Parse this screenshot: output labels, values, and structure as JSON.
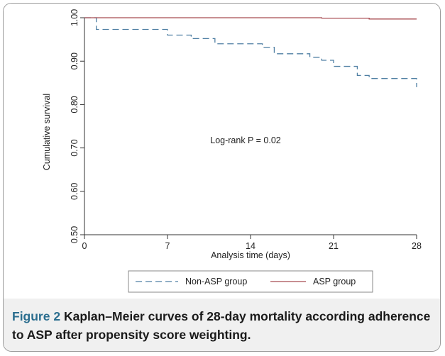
{
  "chart_data": {
    "type": "line",
    "xlabel": "Analysis time (days)",
    "ylabel": "Cumulative survival",
    "xlim": [
      0,
      28
    ],
    "ylim": [
      0.5,
      1.0
    ],
    "x_ticks": [
      0,
      7,
      14,
      21,
      28
    ],
    "x_tick_labels": [
      "0",
      "7",
      "14",
      "21",
      "28"
    ],
    "y_ticks": [
      0.5,
      0.6,
      0.7,
      0.8,
      0.9,
      1.0
    ],
    "y_tick_labels": [
      "0.50",
      "0.60",
      "0.70",
      "0.80",
      "0.90",
      "1.00"
    ],
    "grid": false,
    "legend_position": "bottom",
    "annotation": "Log-rank P = 0.02",
    "series": [
      {
        "name": "Non-ASP group",
        "color": "#4f7fa3",
        "style": "dashed",
        "step": true,
        "x": [
          0,
          1,
          7,
          9,
          11,
          15,
          16,
          19,
          20,
          21,
          23,
          24,
          28
        ],
        "y": [
          1.0,
          0.973,
          0.96,
          0.952,
          0.94,
          0.932,
          0.917,
          0.909,
          0.902,
          0.888,
          0.867,
          0.86,
          0.84
        ]
      },
      {
        "name": "ASP group",
        "color": "#a84c52",
        "style": "solid",
        "step": true,
        "x": [
          0,
          20,
          24,
          28
        ],
        "y": [
          1.0,
          0.999,
          0.997,
          0.997
        ]
      }
    ]
  },
  "caption": {
    "label": "Figure 2",
    "text": "Kaplan–Meier curves of 28-day mortality according adherence to ASP after propensity score weighting."
  }
}
